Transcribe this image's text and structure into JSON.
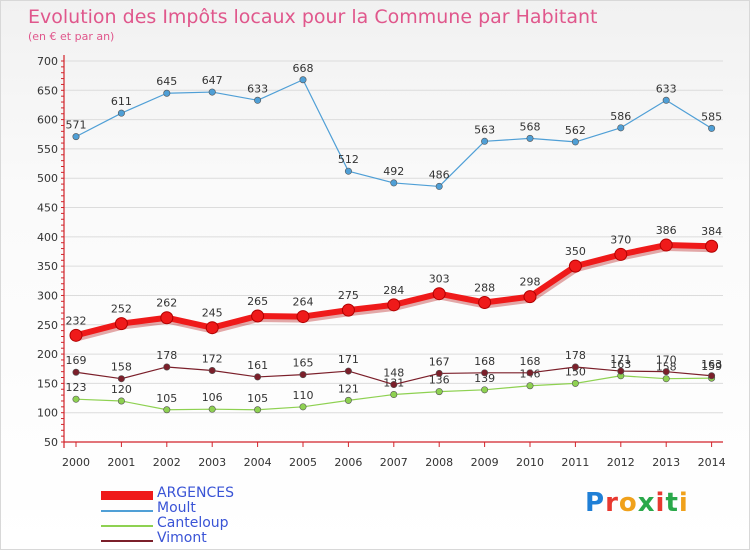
{
  "title": "Evolution des Impôts locaux pour la Commune par Habitant",
  "subtitle": "(en € et par an)",
  "logo": {
    "text": "Proxiti",
    "letter_colors": [
      "#1f7fd6",
      "#e8382f",
      "#f0a11b",
      "#2aa84a",
      "#e8382f",
      "#2aa84a",
      "#f0a11b"
    ]
  },
  "colors": {
    "title": "#e0578c",
    "axis": "#d2232a",
    "legend_text": "#3a54d6",
    "grid": "#dcdcdc"
  },
  "chart_data": {
    "type": "line",
    "x": [
      "2000",
      "2001",
      "2002",
      "2003",
      "2004",
      "2005",
      "2006",
      "2007",
      "2008",
      "2009",
      "2010",
      "2011",
      "2012",
      "2013",
      "2014"
    ],
    "yticks": [
      "50",
      "100",
      "150",
      "200",
      "250",
      "300",
      "350",
      "400",
      "450",
      "500",
      "550",
      "600",
      "650",
      "700"
    ],
    "ylim": [
      50,
      700
    ],
    "grid": true,
    "legend_position": "bottom-left",
    "series": [
      {
        "name": "ARGENCES",
        "color": "#ef1a1a",
        "width": 6,
        "marker": 6,
        "values": [
          232,
          252,
          262,
          245,
          265,
          264,
          275,
          284,
          303,
          288,
          298,
          350,
          370,
          386,
          384
        ],
        "labels": [
          "232",
          "252",
          "262",
          "245",
          "265",
          "264",
          "275",
          "284",
          "303",
          "288",
          "298",
          "350",
          "370",
          "386",
          "384"
        ]
      },
      {
        "name": "Moult",
        "color": "#4f9fd6",
        "width": 1.2,
        "marker": 3.2,
        "values": [
          571,
          611,
          645,
          647,
          633,
          668,
          512,
          492,
          486,
          563,
          568,
          562,
          586,
          633,
          585
        ],
        "labels": [
          "571",
          "611",
          "645",
          "647",
          "633",
          "668",
          "512",
          "492",
          "486",
          "563",
          "568",
          "562",
          "586",
          "633",
          "585"
        ]
      },
      {
        "name": "Canteloup",
        "color": "#8ed151",
        "width": 1.2,
        "marker": 3.2,
        "values": [
          123,
          120,
          105,
          106,
          105,
          110,
          121,
          131,
          136,
          139,
          146,
          150,
          163,
          158,
          159
        ],
        "labels": [
          "123",
          "120",
          "105",
          "106",
          "105",
          "110",
          "121",
          "131",
          "136",
          "139",
          "146",
          "150",
          "163",
          "158",
          "159"
        ]
      },
      {
        "name": "Vimont",
        "color": "#7b1f2a",
        "width": 1.2,
        "marker": 3.2,
        "values": [
          169,
          158,
          178,
          172,
          161,
          165,
          171,
          148,
          167,
          168,
          168,
          178,
          171,
          170,
          163
        ],
        "labels": [
          "169",
          "158",
          "178",
          "172",
          "161",
          "165",
          "171",
          "148",
          "167",
          "168",
          "168",
          "178",
          "171",
          "170",
          "163"
        ]
      }
    ]
  }
}
